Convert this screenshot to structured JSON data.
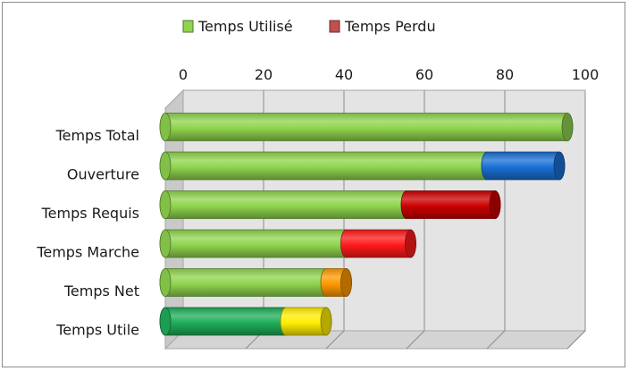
{
  "chart_data": {
    "type": "bar",
    "orientation": "horizontal",
    "stacked": true,
    "style": "3d-cylinder",
    "categories": [
      "Temps Total",
      "Ouverture",
      "Temps Requis",
      "Temps Marche",
      "Temps Net",
      "Temps Utile"
    ],
    "series": [
      {
        "name": "Temps Utilisé",
        "values": [
          100,
          80,
          60,
          45,
          40,
          30
        ]
      },
      {
        "name": "Temps Perdu",
        "values": [
          0,
          18,
          22,
          16,
          5,
          10
        ]
      }
    ],
    "segment_colors": [
      [
        "#8fd44e",
        "#8b3a2a"
      ],
      [
        "#8fd44e",
        "#1a6fd6"
      ],
      [
        "#8fd44e",
        "#cc0000"
      ],
      [
        "#8fd44e",
        "#ff1a1a"
      ],
      [
        "#8fd44e",
        "#ff9900"
      ],
      [
        "#1fae5a",
        "#ffee00"
      ]
    ],
    "xlim": [
      0,
      100
    ],
    "xticks": [
      "0",
      "20",
      "40",
      "60",
      "80",
      "100"
    ],
    "x_axis_position": "top",
    "grid": true,
    "legend": {
      "position": "top",
      "entries": [
        {
          "label": "Temps Utilisé",
          "color": "#8fd44e"
        },
        {
          "label": "Temps Perdu",
          "color": "#c0504d"
        }
      ]
    }
  }
}
